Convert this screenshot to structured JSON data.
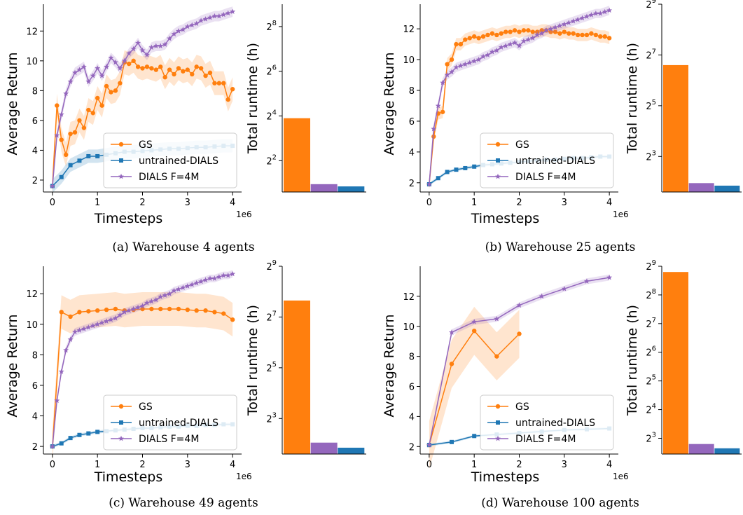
{
  "colors": {
    "gs": "#ff7f0e",
    "untrained": "#1f77b4",
    "dials": "#9467bd"
  },
  "legend": [
    "GS",
    "untrained-DIALS",
    "DIALS F=4M"
  ],
  "chart_data": [
    {
      "type": "line",
      "caption": "(a) Warehouse 4 agents",
      "xlabel": "Timesteps",
      "ylabel": "Average Return",
      "x_multiplier": "1e6",
      "xlim": [
        -0.2,
        4.2
      ],
      "ylim": [
        1.2,
        13.8
      ],
      "xticks": [
        0,
        1,
        2,
        3,
        4
      ],
      "yticks": [
        2,
        4,
        6,
        8,
        10,
        12
      ],
      "series": [
        {
          "name": "GS",
          "x": [
            0,
            0.1,
            0.2,
            0.3,
            0.4,
            0.5,
            0.6,
            0.7,
            0.8,
            0.9,
            1.0,
            1.1,
            1.2,
            1.3,
            1.4,
            1.5,
            1.6,
            1.7,
            1.8,
            1.9,
            2.0,
            2.1,
            2.2,
            2.3,
            2.4,
            2.5,
            2.6,
            2.7,
            2.8,
            2.9,
            3.0,
            3.1,
            3.2,
            3.3,
            3.4,
            3.5,
            3.6,
            3.7,
            3.8,
            3.9,
            4.0
          ],
          "y": [
            1.6,
            7.0,
            4.7,
            3.7,
            5.1,
            5.2,
            6.0,
            5.5,
            6.7,
            6.5,
            7.5,
            7.0,
            8.3,
            7.9,
            8.0,
            8.5,
            9.9,
            9.8,
            10.0,
            9.6,
            9.5,
            9.6,
            9.5,
            9.4,
            9.6,
            8.9,
            9.4,
            9.1,
            9.5,
            9.3,
            9.4,
            9.1,
            9.6,
            9.5,
            9.0,
            9.2,
            8.5,
            8.5,
            8.5,
            7.4,
            8.1
          ],
          "band": 0.8
        },
        {
          "name": "untrained-DIALS",
          "x": [
            0,
            0.2,
            0.4,
            0.6,
            0.8,
            1.0,
            1.2,
            1.4,
            1.6,
            1.8,
            2.0,
            2.2,
            2.4,
            2.6,
            2.8,
            3.0,
            3.2,
            3.4,
            3.6,
            3.8,
            4.0
          ],
          "y": [
            1.6,
            2.2,
            3.0,
            3.3,
            3.6,
            3.6,
            3.7,
            3.8,
            3.9,
            3.9,
            3.95,
            4.0,
            4.05,
            4.1,
            4.1,
            4.15,
            4.2,
            4.2,
            4.25,
            4.3,
            4.3
          ],
          "band": 0.45
        },
        {
          "name": "DIALS F=4M",
          "x": [
            0,
            0.1,
            0.2,
            0.3,
            0.4,
            0.5,
            0.6,
            0.7,
            0.8,
            0.9,
            1.0,
            1.1,
            1.2,
            1.3,
            1.4,
            1.5,
            1.6,
            1.7,
            1.8,
            1.9,
            2.0,
            2.1,
            2.2,
            2.3,
            2.4,
            2.5,
            2.6,
            2.7,
            2.8,
            2.9,
            3.0,
            3.1,
            3.2,
            3.3,
            3.4,
            3.5,
            3.6,
            3.7,
            3.8,
            3.9,
            4.0
          ],
          "y": [
            1.6,
            5.0,
            6.4,
            7.8,
            8.6,
            9.2,
            9.4,
            9.6,
            8.6,
            9.0,
            9.5,
            9.0,
            9.6,
            10.2,
            9.9,
            9.5,
            10.0,
            10.5,
            10.8,
            11.2,
            10.7,
            10.4,
            10.9,
            11.0,
            11.0,
            11.1,
            11.5,
            11.8,
            12.0,
            12.1,
            12.3,
            12.4,
            12.5,
            12.7,
            12.8,
            12.9,
            13.0,
            13.0,
            13.1,
            13.2,
            13.3
          ],
          "band": 0.35
        }
      ],
      "bar": {
        "ylabel": "Total runtime (h)",
        "scale": "log2",
        "ymin_exp": 0.6,
        "ymax_exp": 9,
        "ytick_exps": [
          2,
          4,
          6,
          8
        ],
        "values_exp": [
          3.9,
          0.95,
          0.85
        ]
      }
    },
    {
      "type": "line",
      "caption": "(b) Warehouse 25 agents",
      "xlabel": "Timesteps",
      "ylabel": "Average Return",
      "x_multiplier": "1e6",
      "xlim": [
        -0.2,
        4.2
      ],
      "ylim": [
        1.4,
        13.6
      ],
      "xticks": [
        0,
        1,
        2,
        3,
        4
      ],
      "yticks": [
        2,
        4,
        6,
        8,
        10,
        12
      ],
      "series": [
        {
          "name": "GS",
          "x": [
            0,
            0.1,
            0.2,
            0.3,
            0.4,
            0.5,
            0.6,
            0.7,
            0.8,
            0.9,
            1.0,
            1.1,
            1.2,
            1.3,
            1.4,
            1.5,
            1.6,
            1.7,
            1.8,
            1.9,
            2.0,
            2.1,
            2.2,
            2.3,
            2.4,
            2.5,
            2.6,
            2.7,
            2.8,
            2.9,
            3.0,
            3.1,
            3.2,
            3.3,
            3.4,
            3.5,
            3.6,
            3.7,
            3.8,
            3.9,
            4.0
          ],
          "y": [
            1.9,
            5.0,
            6.5,
            6.6,
            9.7,
            10.0,
            11.0,
            11.0,
            11.3,
            11.4,
            11.5,
            11.4,
            11.5,
            11.6,
            11.7,
            11.6,
            11.7,
            11.8,
            11.8,
            11.9,
            11.8,
            11.9,
            11.9,
            11.8,
            11.8,
            11.9,
            11.9,
            11.8,
            11.8,
            11.7,
            11.8,
            11.7,
            11.7,
            11.6,
            11.6,
            11.6,
            11.7,
            11.6,
            11.5,
            11.5,
            11.4
          ],
          "band": 0.4
        },
        {
          "name": "untrained-DIALS",
          "x": [
            0,
            0.2,
            0.4,
            0.6,
            0.8,
            1.0,
            1.2,
            1.4,
            1.6,
            1.8,
            2.0,
            2.2,
            2.4,
            2.6,
            2.8,
            3.0,
            3.2,
            3.4,
            3.6,
            3.8,
            4.0
          ],
          "y": [
            1.9,
            2.3,
            2.7,
            2.85,
            2.95,
            3.05,
            3.15,
            3.2,
            3.25,
            3.3,
            3.35,
            3.4,
            3.45,
            3.5,
            3.5,
            3.55,
            3.6,
            3.6,
            3.65,
            3.7,
            3.7
          ],
          "band": 0.1
        },
        {
          "name": "DIALS F=4M",
          "x": [
            0,
            0.1,
            0.2,
            0.3,
            0.4,
            0.5,
            0.6,
            0.7,
            0.8,
            0.9,
            1.0,
            1.1,
            1.2,
            1.3,
            1.4,
            1.5,
            1.6,
            1.7,
            1.8,
            1.9,
            2.0,
            2.1,
            2.2,
            2.3,
            2.4,
            2.5,
            2.6,
            2.7,
            2.8,
            2.9,
            3.0,
            3.1,
            3.2,
            3.3,
            3.4,
            3.5,
            3.6,
            3.7,
            3.8,
            3.9,
            4.0
          ],
          "y": [
            1.9,
            5.5,
            7.0,
            8.5,
            9.0,
            9.2,
            9.5,
            9.6,
            9.7,
            9.8,
            9.9,
            10.0,
            10.2,
            10.3,
            10.5,
            10.6,
            10.8,
            10.9,
            11.0,
            11.1,
            10.9,
            11.2,
            11.3,
            11.4,
            11.6,
            11.7,
            11.9,
            12.0,
            12.1,
            12.2,
            12.3,
            12.4,
            12.5,
            12.6,
            12.7,
            12.8,
            12.9,
            13.0,
            13.0,
            13.1,
            13.2
          ],
          "band": 0.3
        }
      ],
      "bar": {
        "ylabel": "Total runtime (h)",
        "scale": "log2",
        "ymin_exp": 1.6,
        "ymax_exp": 9,
        "ytick_exps": [
          3,
          5,
          7,
          9
        ],
        "values_exp": [
          6.6,
          1.95,
          1.85
        ]
      }
    },
    {
      "type": "line",
      "caption": "(c) Warehouse 49 agents",
      "xlabel": "Timesteps",
      "ylabel": "Average Return",
      "x_multiplier": "1e6",
      "xlim": [
        -0.2,
        4.2
      ],
      "ylim": [
        1.5,
        13.8
      ],
      "xticks": [
        0,
        1,
        2,
        3,
        4
      ],
      "yticks": [
        2,
        4,
        6,
        8,
        10,
        12
      ],
      "series": [
        {
          "name": "GS",
          "x": [
            0,
            0.2,
            0.4,
            0.6,
            0.8,
            1.0,
            1.2,
            1.4,
            1.6,
            1.8,
            2.0,
            2.2,
            2.4,
            2.6,
            2.8,
            3.0,
            3.2,
            3.4,
            3.6,
            3.8,
            4.0
          ],
          "y": [
            2.0,
            10.8,
            10.5,
            10.8,
            10.85,
            10.9,
            10.95,
            11.0,
            10.9,
            10.95,
            11.0,
            11.0,
            11.0,
            11.0,
            11.0,
            10.95,
            10.9,
            10.9,
            10.8,
            10.7,
            10.3
          ],
          "band": 1.1
        },
        {
          "name": "untrained-DIALS",
          "x": [
            0,
            0.2,
            0.4,
            0.6,
            0.8,
            1.0,
            1.2,
            1.4,
            1.6,
            1.8,
            2.0,
            2.2,
            2.4,
            2.6,
            2.8,
            3.0,
            3.2,
            3.4,
            3.6,
            3.8,
            4.0
          ],
          "y": [
            2.0,
            2.2,
            2.55,
            2.75,
            2.85,
            2.95,
            3.0,
            3.05,
            3.1,
            3.15,
            3.2,
            3.2,
            3.25,
            3.3,
            3.3,
            3.35,
            3.35,
            3.4,
            3.4,
            3.45,
            3.45
          ],
          "band": 0.1
        },
        {
          "name": "DIALS F=4M",
          "x": [
            0,
            0.1,
            0.2,
            0.3,
            0.4,
            0.5,
            0.6,
            0.7,
            0.8,
            0.9,
            1.0,
            1.1,
            1.2,
            1.3,
            1.4,
            1.5,
            1.6,
            1.7,
            1.8,
            1.9,
            2.0,
            2.1,
            2.2,
            2.3,
            2.4,
            2.5,
            2.6,
            2.7,
            2.8,
            2.9,
            3.0,
            3.1,
            3.2,
            3.3,
            3.4,
            3.5,
            3.6,
            3.7,
            3.8,
            3.9,
            4.0
          ],
          "y": [
            2.0,
            5.0,
            6.9,
            8.3,
            9.0,
            9.5,
            9.6,
            9.7,
            9.8,
            9.9,
            10.0,
            10.1,
            10.2,
            10.3,
            10.4,
            10.6,
            10.8,
            10.9,
            11.0,
            11.1,
            11.2,
            11.4,
            11.5,
            11.6,
            11.8,
            11.9,
            12.0,
            12.2,
            12.3,
            12.4,
            12.5,
            12.6,
            12.7,
            12.8,
            12.9,
            13.0,
            13.0,
            13.1,
            13.2,
            13.2,
            13.3
          ],
          "band": 0.25
        }
      ],
      "bar": {
        "ylabel": "Total runtime (h)",
        "scale": "log2",
        "ymin_exp": 1.6,
        "ymax_exp": 9,
        "ytick_exps": [
          3,
          5,
          7,
          9
        ],
        "values_exp": [
          7.65,
          2.05,
          1.85
        ]
      }
    },
    {
      "type": "line",
      "caption": "(d) Warehouse 100 agents",
      "xlabel": "Timesteps",
      "ylabel": "Average Return",
      "x_multiplier": "1e6",
      "xlim": [
        -0.2,
        4.2
      ],
      "ylim": [
        1.5,
        14.0
      ],
      "xticks": [
        0,
        1,
        2,
        3,
        4
      ],
      "yticks": [
        2,
        4,
        6,
        8,
        10,
        12
      ],
      "series": [
        {
          "name": "GS",
          "x": [
            0,
            0.5,
            1.0,
            1.5,
            2.0
          ],
          "y": [
            2.1,
            7.5,
            9.7,
            8.0,
            9.5
          ],
          "band": 1.6
        },
        {
          "name": "untrained-DIALS",
          "x": [
            0,
            0.5,
            1.0,
            1.5,
            2.0,
            2.5,
            3.0,
            3.5,
            4.0
          ],
          "y": [
            2.1,
            2.3,
            2.7,
            2.8,
            2.9,
            3.0,
            3.1,
            3.15,
            3.2
          ],
          "band": 0.08
        },
        {
          "name": "DIALS F=4M",
          "x": [
            0,
            0.5,
            1.0,
            1.5,
            2.0,
            2.5,
            3.0,
            3.5,
            4.0
          ],
          "y": [
            2.1,
            9.6,
            10.3,
            10.5,
            11.4,
            12.0,
            12.5,
            13.0,
            13.25
          ],
          "band": 0.2
        }
      ],
      "bar": {
        "ylabel": "Total runtime (h)",
        "scale": "log2",
        "ymin_exp": 2.45,
        "ymax_exp": 9,
        "ytick_exps": [
          3,
          4,
          5,
          6,
          7,
          8,
          9
        ],
        "values_exp": [
          8.8,
          2.8,
          2.65
        ]
      }
    }
  ]
}
